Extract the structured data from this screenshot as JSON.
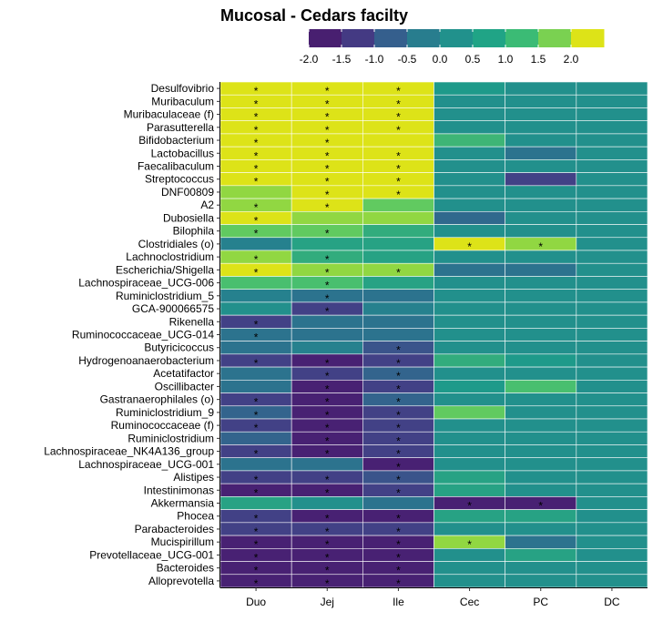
{
  "chart_data": {
    "type": "heatmap",
    "title": "Mucosal - Cedars facilty",
    "xlabel": "",
    "ylabel": "",
    "x_categories": [
      "Duo",
      "Jej",
      "Ile",
      "Cec",
      "PC",
      "DC"
    ],
    "y_categories": [
      "Desulfovibrio",
      "Muribaculum",
      "Muribaculaceae (f)",
      "Parasutterella",
      "Bifidobacterium",
      "Lactobacillus",
      "Faecalibaculum",
      "Streptococcus",
      "DNF00809",
      "A2",
      "Dubosiella",
      "Bilophila",
      "Clostridiales (o)",
      "Lachnoclostridium",
      "Escherichia/Shigella",
      "Lachnospiraceae_UCG-006",
      "Ruminiclostridium_5",
      "GCA-900066575",
      "Rikenella",
      "Ruminococcaceae_UCG-014",
      "Butyricicoccus",
      "Hydrogenoanaerobacterium",
      "Acetatifactor",
      "Oscillibacter",
      "Gastranaerophilales (o)",
      "Ruminiclostridium_9",
      "Ruminococcaceae (f)",
      "Ruminiclostridium",
      "Lachnospiraceae_NK4A136_group",
      "Lachnospiraceae_UCG-001",
      "Alistipes",
      "Intestinimonas",
      "Akkermansia",
      "Phocea",
      "Parabacteroides",
      "Mucispirillum",
      "Prevotellaceae_UCG-001",
      "Bacteroides",
      "Alloprevotella"
    ],
    "values": [
      [
        2.0,
        2.0,
        2.0,
        0.2,
        0.0,
        0.0
      ],
      [
        2.0,
        2.0,
        2.0,
        0.0,
        0.0,
        0.0
      ],
      [
        2.0,
        2.0,
        2.0,
        0.0,
        0.0,
        0.0
      ],
      [
        2.0,
        2.0,
        2.0,
        0.0,
        0.0,
        0.0
      ],
      [
        2.0,
        2.0,
        2.0,
        0.5,
        0.0,
        0.0
      ],
      [
        2.0,
        2.0,
        2.0,
        0.0,
        -0.6,
        0.0
      ],
      [
        2.0,
        2.0,
        2.0,
        0.0,
        0.0,
        0.0
      ],
      [
        2.0,
        2.0,
        2.0,
        0.0,
        -1.5,
        0.0
      ],
      [
        1.2,
        2.0,
        2.0,
        0.0,
        0.0,
        0.0
      ],
      [
        1.2,
        2.0,
        0.8,
        0.0,
        0.0,
        0.0
      ],
      [
        2.0,
        1.2,
        1.2,
        -0.8,
        0.0,
        0.0
      ],
      [
        0.8,
        0.8,
        0.4,
        0.0,
        0.0,
        0.0
      ],
      [
        -0.3,
        0.3,
        0.3,
        2.0,
        1.2,
        0.0
      ],
      [
        1.2,
        0.4,
        0.3,
        0.0,
        0.0,
        0.0
      ],
      [
        2.0,
        1.2,
        1.2,
        -0.6,
        -0.6,
        0.0
      ],
      [
        0.6,
        0.6,
        0.3,
        0.0,
        0.0,
        0.0
      ],
      [
        -0.3,
        -0.6,
        -0.6,
        0.0,
        0.0,
        0.0
      ],
      [
        0.0,
        -1.5,
        -0.3,
        0.0,
        0.0,
        0.0
      ],
      [
        -1.5,
        -0.6,
        -0.6,
        0.0,
        0.0,
        0.0
      ],
      [
        -0.6,
        -0.6,
        -0.6,
        0.0,
        0.0,
        0.0
      ],
      [
        -0.6,
        -0.3,
        -1.2,
        0.0,
        0.0,
        0.0
      ],
      [
        -1.5,
        -2.0,
        -1.5,
        0.4,
        0.2,
        0.0
      ],
      [
        -0.6,
        -1.5,
        -0.9,
        0.0,
        0.0,
        0.0
      ],
      [
        -0.6,
        -2.0,
        -1.5,
        0.2,
        0.6,
        0.0
      ],
      [
        -1.5,
        -2.0,
        -0.9,
        0.0,
        0.0,
        0.0
      ],
      [
        -0.9,
        -2.0,
        -1.5,
        0.8,
        0.0,
        0.0
      ],
      [
        -1.5,
        -2.0,
        -1.5,
        0.0,
        0.0,
        0.0
      ],
      [
        -0.9,
        -2.0,
        -1.5,
        0.0,
        0.0,
        0.0
      ],
      [
        -1.5,
        -2.0,
        -1.5,
        0.0,
        0.0,
        0.0
      ],
      [
        -0.6,
        -0.6,
        -2.0,
        0.0,
        0.0,
        0.0
      ],
      [
        -1.5,
        -1.5,
        -1.2,
        0.3,
        0.0,
        0.0
      ],
      [
        -2.0,
        -2.0,
        -1.5,
        0.3,
        0.0,
        0.0
      ],
      [
        0.3,
        0.0,
        -0.6,
        -2.0,
        -2.0,
        0.0
      ],
      [
        -1.5,
        -2.0,
        -2.0,
        0.3,
        0.3,
        0.0
      ],
      [
        -1.5,
        -1.5,
        -1.5,
        0.0,
        0.0,
        0.0
      ],
      [
        -2.0,
        -2.0,
        -2.0,
        1.2,
        -0.6,
        0.0
      ],
      [
        -2.0,
        -2.0,
        -2.0,
        0.0,
        0.3,
        0.0
      ],
      [
        -2.0,
        -2.0,
        -2.0,
        0.0,
        0.0,
        0.0
      ],
      [
        -2.0,
        -2.0,
        -2.0,
        0.0,
        0.0,
        0.0
      ]
    ],
    "significant": [
      [
        true,
        true,
        true,
        false,
        false,
        false
      ],
      [
        true,
        true,
        true,
        false,
        false,
        false
      ],
      [
        true,
        true,
        true,
        false,
        false,
        false
      ],
      [
        true,
        true,
        true,
        false,
        false,
        false
      ],
      [
        true,
        true,
        false,
        false,
        false,
        false
      ],
      [
        true,
        true,
        true,
        false,
        false,
        false
      ],
      [
        true,
        true,
        true,
        false,
        false,
        false
      ],
      [
        true,
        true,
        true,
        false,
        false,
        false
      ],
      [
        false,
        true,
        true,
        false,
        false,
        false
      ],
      [
        true,
        true,
        false,
        false,
        false,
        false
      ],
      [
        true,
        false,
        false,
        false,
        false,
        false
      ],
      [
        true,
        true,
        false,
        false,
        false,
        false
      ],
      [
        false,
        false,
        false,
        true,
        true,
        false
      ],
      [
        true,
        true,
        false,
        false,
        false,
        false
      ],
      [
        true,
        true,
        true,
        false,
        false,
        false
      ],
      [
        false,
        true,
        false,
        false,
        false,
        false
      ],
      [
        false,
        true,
        false,
        false,
        false,
        false
      ],
      [
        false,
        true,
        false,
        false,
        false,
        false
      ],
      [
        true,
        false,
        false,
        false,
        false,
        false
      ],
      [
        true,
        false,
        false,
        false,
        false,
        false
      ],
      [
        false,
        false,
        true,
        false,
        false,
        false
      ],
      [
        true,
        true,
        true,
        false,
        false,
        false
      ],
      [
        false,
        true,
        true,
        false,
        false,
        false
      ],
      [
        false,
        true,
        true,
        false,
        false,
        false
      ],
      [
        true,
        true,
        true,
        false,
        false,
        false
      ],
      [
        true,
        true,
        true,
        false,
        false,
        false
      ],
      [
        true,
        true,
        true,
        false,
        false,
        false
      ],
      [
        false,
        true,
        true,
        false,
        false,
        false
      ],
      [
        true,
        true,
        true,
        false,
        false,
        false
      ],
      [
        false,
        false,
        true,
        false,
        false,
        false
      ],
      [
        true,
        true,
        true,
        false,
        false,
        false
      ],
      [
        true,
        true,
        true,
        false,
        false,
        false
      ],
      [
        false,
        false,
        false,
        true,
        true,
        false
      ],
      [
        true,
        true,
        true,
        false,
        false,
        false
      ],
      [
        true,
        true,
        true,
        false,
        false,
        false
      ],
      [
        true,
        true,
        true,
        true,
        false,
        false
      ],
      [
        true,
        true,
        true,
        false,
        false,
        false
      ],
      [
        true,
        true,
        true,
        false,
        false,
        false
      ],
      [
        true,
        true,
        true,
        false,
        false,
        false
      ]
    ],
    "significance_marker": "*",
    "color_scale": {
      "breaks": [
        "-2.0",
        "-1.5",
        "-1.0",
        "-0.5",
        "0.0",
        "0.5",
        "1.0",
        "1.5",
        "2.0"
      ],
      "range": [
        -2.0,
        2.0
      ],
      "colors": [
        "#482173",
        "#433e85",
        "#38598c",
        "#2d708e",
        "#25858e",
        "#1e9b8a",
        "#51c56a",
        "#85d54a",
        "#c2df23",
        "#dde318"
      ],
      "legend_colors": [
        "#481f70",
        "#443a83",
        "#355f8d",
        "#287d8e",
        "#21918c",
        "#20a486",
        "#3bbb75",
        "#7ad151",
        "#dde318"
      ],
      "legend_position": "top"
    },
    "grid": false
  }
}
